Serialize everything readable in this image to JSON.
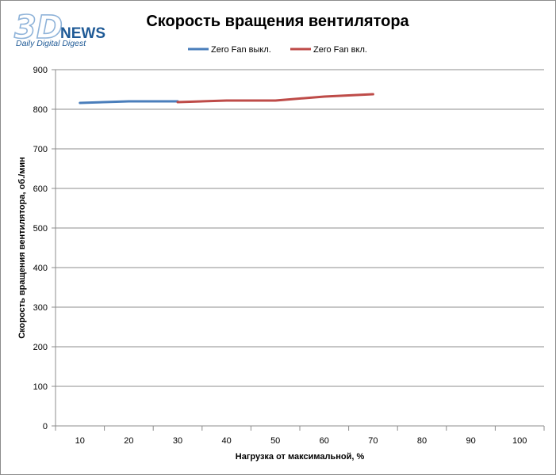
{
  "logo": {
    "mark": "3D",
    "word": "NEWS",
    "tagline": "Daily Digital Digest"
  },
  "colors": {
    "series_off": "#4a7ebb",
    "series_on": "#be4b48",
    "grid": "#8c8c8c",
    "logo_blue": "#1f5a96",
    "logo_light": "#8fb3d9"
  },
  "chart_data": {
    "type": "line",
    "title": "Скорость вращения вентилятора",
    "xlabel": "Нагрузка  от максимальной,  %",
    "ylabel": "Скорость  вращения  вентилятора,  об./мин",
    "categories": [
      "10",
      "20",
      "30",
      "40",
      "50",
      "60",
      "70",
      "80",
      "90",
      "100"
    ],
    "ylim": [
      0,
      900
    ],
    "yticks": [
      "0",
      "100",
      "200",
      "300",
      "400",
      "500",
      "600",
      "700",
      "800",
      "900"
    ],
    "grid": true,
    "legend_position": "top",
    "series": [
      {
        "name": "Zero  Fan выкл.",
        "values": [
          816,
          820,
          820,
          null,
          null,
          null,
          null,
          null,
          null,
          null
        ]
      },
      {
        "name": "Zero  Fan вкл.",
        "values": [
          null,
          null,
          818,
          822,
          822,
          832,
          838,
          null,
          null,
          null
        ]
      }
    ]
  }
}
